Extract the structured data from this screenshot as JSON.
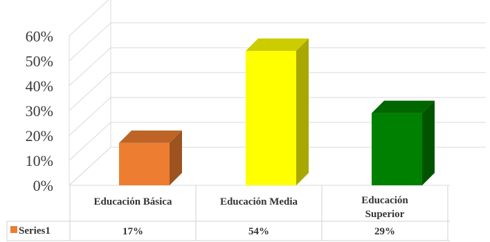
{
  "chart_data": {
    "type": "bar",
    "categories": [
      "Educación Básica",
      "Educación Media",
      "Educación Superior"
    ],
    "category_lines": [
      [
        "Educación Básica"
      ],
      [
        "Educación Media"
      ],
      [
        "Educación",
        "Superior"
      ]
    ],
    "series": [
      {
        "name": "Series1",
        "values": [
          0.17,
          0.54,
          0.29
        ],
        "value_labels": [
          "17%",
          "54%",
          "29%"
        ]
      }
    ],
    "bar_colors": [
      "#ED7D31",
      "#FFFF00",
      "#008000"
    ],
    "legend_swatch_color": "#ED7D31",
    "ylim": [
      0,
      0.6
    ],
    "y_ticks": [
      "0%",
      "10%",
      "20%",
      "30%",
      "40%",
      "50%",
      "60%"
    ],
    "grid": true,
    "style": "3d-column-with-data-table",
    "legend_placement": "data-table-left"
  }
}
